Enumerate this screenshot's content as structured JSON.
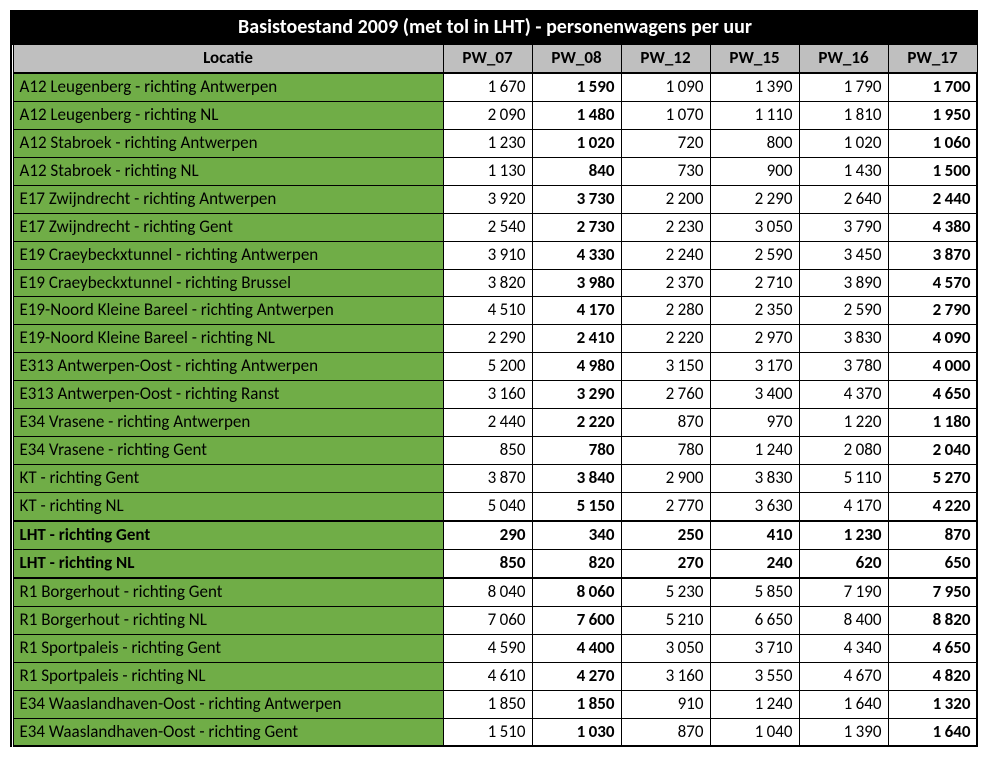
{
  "title": "Basistoestand 2009 (met tol in LHT) - personenwagens per uur",
  "columns": [
    "Locatie",
    "PW_07",
    "PW_08",
    "PW_12",
    "PW_15",
    "PW_16",
    "PW_17"
  ],
  "bold_col_indices": [
    1,
    5
  ],
  "colors": {
    "title_bg": "#000000",
    "title_fg": "#ffffff",
    "header_bg": "#bfbfbf",
    "loc_bg": "#70ad47",
    "border": "#000000"
  },
  "rows": [
    {
      "loc": "A12 Leugenberg - richting Antwerpen",
      "v": [
        1670,
        1590,
        1090,
        1390,
        1790,
        1700
      ]
    },
    {
      "loc": "A12 Leugenberg - richting NL",
      "v": [
        2090,
        1480,
        1070,
        1110,
        1810,
        1950
      ]
    },
    {
      "loc": "A12 Stabroek - richting Antwerpen",
      "v": [
        1230,
        1020,
        720,
        800,
        1020,
        1060
      ]
    },
    {
      "loc": "A12 Stabroek - richting NL",
      "v": [
        1130,
        840,
        730,
        900,
        1430,
        1500
      ]
    },
    {
      "loc": "E17 Zwijndrecht - richting Antwerpen",
      "v": [
        3920,
        3730,
        2200,
        2290,
        2640,
        2440
      ]
    },
    {
      "loc": "E17 Zwijndrecht - richting Gent",
      "v": [
        2540,
        2730,
        2230,
        3050,
        3790,
        4380
      ]
    },
    {
      "loc": "E19 Craeybeckxtunnel - richting Antwerpen",
      "v": [
        3910,
        4330,
        2240,
        2590,
        3450,
        3870
      ]
    },
    {
      "loc": "E19 Craeybeckxtunnel - richting Brussel",
      "v": [
        3820,
        3980,
        2370,
        2710,
        3890,
        4570
      ]
    },
    {
      "loc": "E19-Noord Kleine Bareel - richting Antwerpen",
      "v": [
        4510,
        4170,
        2280,
        2350,
        2590,
        2790
      ]
    },
    {
      "loc": "E19-Noord Kleine Bareel - richting NL",
      "v": [
        2290,
        2410,
        2220,
        2970,
        3830,
        4090
      ]
    },
    {
      "loc": "E313 Antwerpen-Oost - richting Antwerpen",
      "v": [
        5200,
        4980,
        3150,
        3170,
        3780,
        4000
      ]
    },
    {
      "loc": "E313 Antwerpen-Oost - richting Ranst",
      "v": [
        3160,
        3290,
        2760,
        3400,
        4370,
        4650
      ]
    },
    {
      "loc": "E34 Vrasene - richting Antwerpen",
      "v": [
        2440,
        2220,
        870,
        970,
        1220,
        1180
      ]
    },
    {
      "loc": "E34 Vrasene - richting Gent",
      "v": [
        850,
        780,
        780,
        1240,
        2080,
        2040
      ]
    },
    {
      "loc": "KT - richting Gent",
      "v": [
        3870,
        3840,
        2900,
        3830,
        5110,
        5270
      ]
    },
    {
      "loc": "KT - richting NL",
      "v": [
        5040,
        5150,
        2770,
        3630,
        4170,
        4220
      ]
    },
    {
      "loc": "LHT - richting Gent",
      "v": [
        290,
        340,
        250,
        410,
        1230,
        870
      ],
      "bold_row": true,
      "sep_above": true
    },
    {
      "loc": "LHT - richting NL",
      "v": [
        850,
        820,
        270,
        240,
        620,
        650
      ],
      "bold_row": true
    },
    {
      "loc": "R1 Borgerhout - richting Gent",
      "v": [
        8040,
        8060,
        5230,
        5850,
        7190,
        7950
      ],
      "sep_above": true
    },
    {
      "loc": "R1 Borgerhout - richting NL",
      "v": [
        7060,
        7600,
        5210,
        6650,
        8400,
        8820
      ]
    },
    {
      "loc": "R1 Sportpaleis - richting Gent",
      "v": [
        4590,
        4400,
        3050,
        3710,
        4340,
        4650
      ]
    },
    {
      "loc": "R1 Sportpaleis - richting NL",
      "v": [
        4610,
        4270,
        3160,
        3550,
        4670,
        4820
      ]
    },
    {
      "loc": "E34 Waaslandhaven-Oost - richting Antwerpen",
      "v": [
        1850,
        1850,
        910,
        1240,
        1640,
        1320
      ]
    },
    {
      "loc": "E34 Waaslandhaven-Oost - richting Gent",
      "v": [
        1510,
        1030,
        870,
        1040,
        1390,
        1640
      ]
    }
  ]
}
